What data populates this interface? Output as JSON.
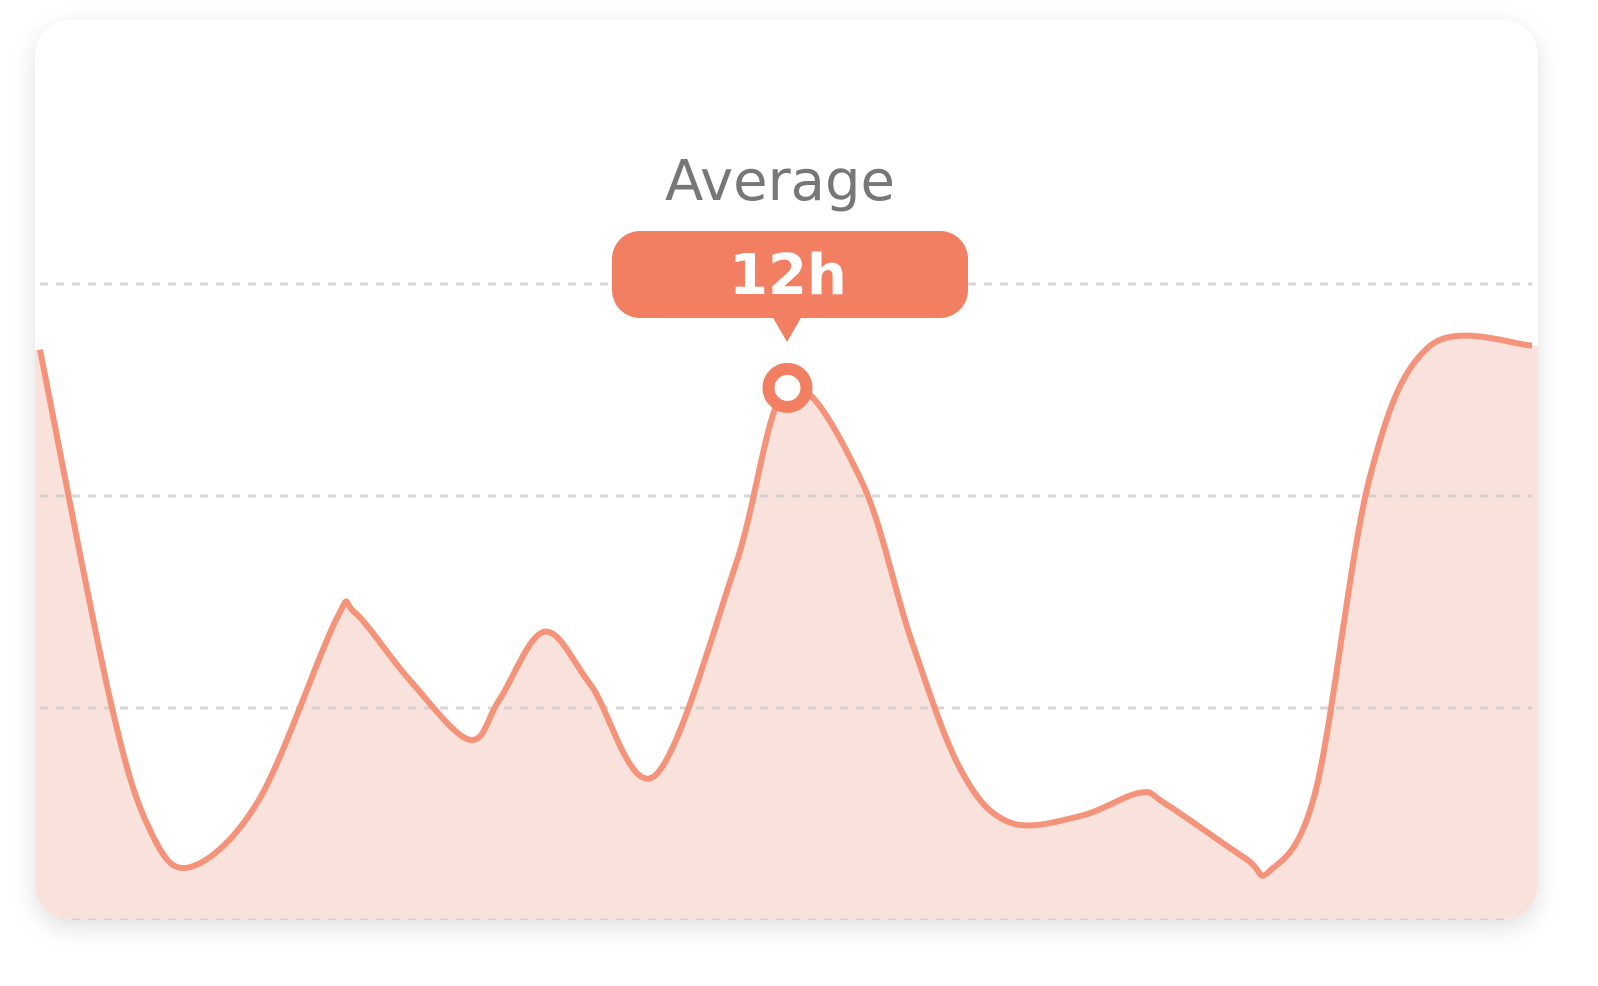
{
  "chart_data": {
    "type": "line",
    "label": "Average",
    "callout": "12h",
    "x": [
      0,
      4.7,
      7.4,
      10.1,
      14.7,
      19.8,
      21.1,
      24.8,
      28.8,
      30.8,
      33.8,
      36.9,
      41.2,
      46.6,
      50.1,
      55.0,
      58.4,
      61.7,
      65.0,
      69.7,
      73.7,
      75.4,
      80.8,
      82.4,
      85.5,
      89.1,
      93.2,
      100
    ],
    "series": [
      {
        "color": "#f4937a",
        "fill": "#f9e1dc",
        "values": [
          2.69,
          1.04,
          0.42,
          0.25,
          0.57,
          1.41,
          1.45,
          1.13,
          0.85,
          1.04,
          1.36,
          1.11,
          0.68,
          1.67,
          2.51,
          2.08,
          1.32,
          0.71,
          0.46,
          0.49,
          0.6,
          0.55,
          0.29,
          0.23,
          0.61,
          2.08,
          2.71,
          2.71
        ]
      }
    ],
    "highlight": 14,
    "callout_color": "#f37f62",
    "xlim": [
      0,
      100
    ],
    "ylim": [
      0,
      3
    ],
    "gridlines": [
      0,
      1,
      2,
      3
    ],
    "grid": true
  }
}
